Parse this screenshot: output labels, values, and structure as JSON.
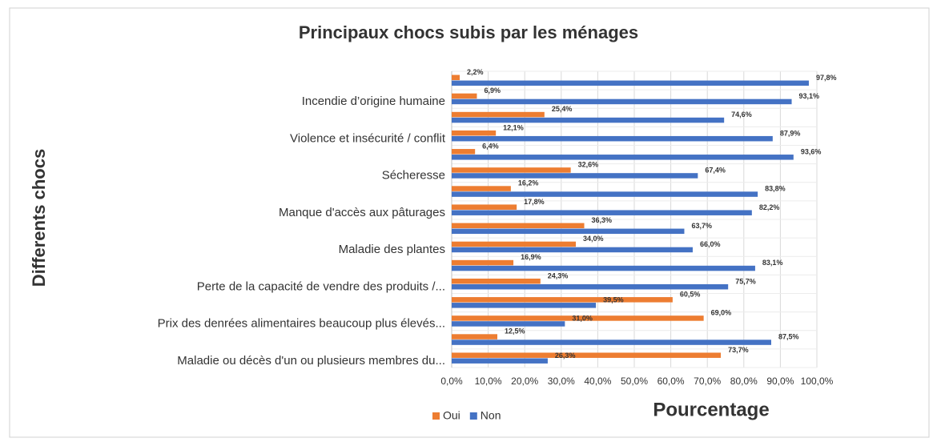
{
  "chart_data": {
    "type": "hbar",
    "title": "Principaux chocs subis par les ménages",
    "x_label": "Pourcentage",
    "y_label": "Differents chocs",
    "categories": [
      null,
      "Incendie d’origine humaine",
      null,
      "Violence et insécurité / conflit",
      null,
      "Sécheresse",
      null,
      "Manque d'accès aux pâturages",
      null,
      "Maladie des plantes",
      null,
      "Perte de la capacité de vendre des produits /...",
      null,
      "Prix des denrées alimentaires beaucoup plus élevés...",
      null,
      "Maladie ou décès d'un ou plusieurs membres du..."
    ],
    "series": [
      {
        "name": "Oui",
        "color": "#ed7d31",
        "values": [
          2.2,
          6.9,
          25.4,
          12.1,
          6.4,
          32.6,
          16.2,
          17.8,
          36.3,
          34.0,
          16.9,
          24.3,
          60.5,
          69.0,
          12.5,
          73.7
        ],
        "value_labels": [
          "2,2%",
          "6,9%",
          "25,4%",
          "12,1%",
          "6,4%",
          "32,6%",
          "16,2%",
          "17,8%",
          "36,3%",
          "34,0%",
          "16,9%",
          "24,3%",
          "60,5%",
          "69,0%",
          "12,5%",
          "73,7%"
        ]
      },
      {
        "name": "Non",
        "color": "#4472c4",
        "values": [
          97.8,
          93.1,
          74.6,
          87.9,
          93.6,
          67.4,
          83.8,
          82.2,
          63.7,
          66.0,
          83.1,
          75.7,
          39.5,
          31.0,
          87.5,
          26.3
        ],
        "value_labels": [
          "97,8%",
          "93,1%",
          "74,6%",
          "87,9%",
          "93,6%",
          "67,4%",
          "83,8%",
          "82,2%",
          "63,7%",
          "66,0%",
          "83,1%",
          "75,7%",
          "39,5%",
          "31,0%",
          "87,5%",
          "26,3%"
        ]
      }
    ],
    "xlim": [
      0,
      100
    ],
    "xticks": [
      {
        "value": 0,
        "label": "0,0%"
      },
      {
        "value": 10,
        "label": "10,0%"
      },
      {
        "value": 20,
        "label": "20,0%"
      },
      {
        "value": 30,
        "label": "30,0%"
      },
      {
        "value": 40,
        "label": "40,0%"
      },
      {
        "value": 50,
        "label": "50,0%"
      },
      {
        "value": 60,
        "label": "60,0%"
      },
      {
        "value": 70,
        "label": "70,0%"
      },
      {
        "value": 80,
        "label": "80,0%"
      },
      {
        "value": 90,
        "label": "90,0%"
      },
      {
        "value": 100,
        "label": "100,0%"
      }
    ],
    "grid": true,
    "legend": "bottom"
  }
}
